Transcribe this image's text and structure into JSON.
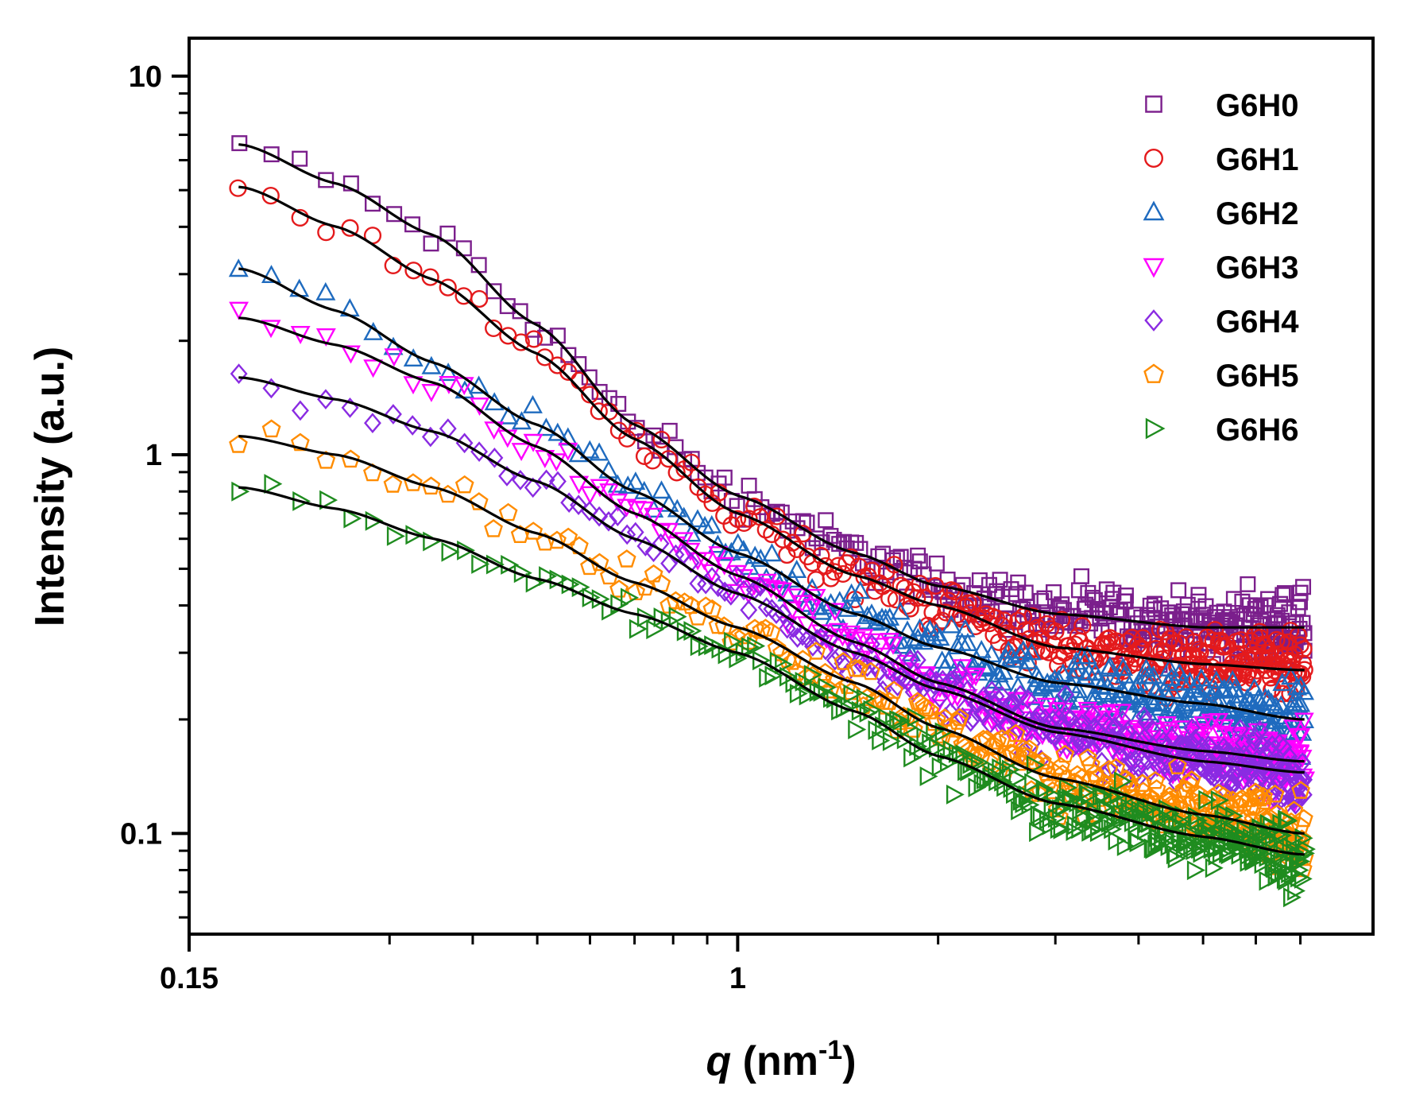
{
  "chart_data": {
    "type": "scatter",
    "xscale": "log",
    "yscale": "log",
    "xlim": [
      0.15,
      9
    ],
    "ylim": [
      0.05,
      13
    ],
    "xlabel_italic": "q",
    "xlabel_rest": " (nm",
    "xlabel_sup": "-1",
    "xlabel_close": ")",
    "ylabel": "Intensity (a.u.)",
    "legend_position": "top-right",
    "x_major_ticks": [
      {
        "value": 0.15,
        "label": "0.15"
      },
      {
        "value": 1,
        "label": "1"
      }
    ],
    "x_minor_ticks": [
      0.3,
      0.4,
      0.5,
      0.6,
      0.7,
      0.8,
      0.9,
      2,
      3,
      4,
      5,
      6,
      7
    ],
    "y_major_ticks": [
      {
        "value": 0.1,
        "label": "0.1"
      },
      {
        "value": 1,
        "label": "1"
      },
      {
        "value": 10,
        "label": "10"
      }
    ],
    "y_minor_ticks": [
      0.06,
      0.07,
      0.08,
      0.09,
      0.2,
      0.3,
      0.4,
      0.5,
      0.6,
      0.7,
      0.8,
      0.9,
      2,
      3,
      4,
      5,
      6,
      7,
      8,
      9
    ],
    "fit_color": "#000000",
    "series": [
      {
        "name": "G6H0",
        "color": "#7b1f8c",
        "marker": "square",
        "x": [
          0.18,
          0.25,
          0.35,
          0.5,
          0.7,
          1.0,
          1.5,
          2.0,
          3.0,
          5.0,
          7.0
        ],
        "y": [
          6.6,
          5.2,
          3.8,
          2.2,
          1.2,
          0.78,
          0.55,
          0.45,
          0.38,
          0.35,
          0.35
        ]
      },
      {
        "name": "G6H1",
        "color": "#e41a1c",
        "marker": "circle",
        "x": [
          0.18,
          0.25,
          0.35,
          0.5,
          0.7,
          1.0,
          1.5,
          2.0,
          3.0,
          5.0,
          7.0
        ],
        "y": [
          5.1,
          4.0,
          2.9,
          1.85,
          1.1,
          0.7,
          0.48,
          0.4,
          0.31,
          0.28,
          0.27
        ]
      },
      {
        "name": "G6H2",
        "color": "#1f6bbf",
        "marker": "triangle-up",
        "x": [
          0.18,
          0.25,
          0.35,
          0.5,
          0.7,
          1.0,
          1.5,
          2.0,
          3.0,
          5.0,
          7.0
        ],
        "y": [
          3.1,
          2.4,
          1.75,
          1.2,
          0.8,
          0.55,
          0.38,
          0.31,
          0.25,
          0.22,
          0.2
        ]
      },
      {
        "name": "G6H3",
        "color": "#ff00ff",
        "marker": "triangle-down",
        "x": [
          0.18,
          0.25,
          0.35,
          0.5,
          0.7,
          1.0,
          1.5,
          2.0,
          3.0,
          5.0,
          7.0
        ],
        "y": [
          2.3,
          1.95,
          1.55,
          1.05,
          0.7,
          0.48,
          0.32,
          0.25,
          0.19,
          0.165,
          0.155
        ]
      },
      {
        "name": "G6H4",
        "color": "#8a2be2",
        "marker": "diamond",
        "x": [
          0.18,
          0.25,
          0.35,
          0.5,
          0.7,
          1.0,
          1.5,
          2.0,
          3.0,
          5.0,
          7.0
        ],
        "y": [
          1.6,
          1.4,
          1.15,
          0.85,
          0.6,
          0.43,
          0.3,
          0.24,
          0.185,
          0.155,
          0.145
        ]
      },
      {
        "name": "G6H5",
        "color": "#ff8c00",
        "marker": "pentagon",
        "x": [
          0.18,
          0.25,
          0.35,
          0.5,
          0.7,
          1.0,
          1.5,
          2.0,
          3.0,
          5.0,
          7.0
        ],
        "y": [
          1.12,
          1.0,
          0.82,
          0.62,
          0.46,
          0.35,
          0.25,
          0.19,
          0.14,
          0.112,
          0.1
        ]
      },
      {
        "name": "G6H6",
        "color": "#1f8c1f",
        "marker": "triangle-right",
        "x": [
          0.18,
          0.25,
          0.35,
          0.5,
          0.7,
          1.0,
          1.5,
          2.0,
          3.0,
          5.0,
          7.0
        ],
        "y": [
          0.82,
          0.72,
          0.6,
          0.47,
          0.38,
          0.3,
          0.21,
          0.16,
          0.12,
          0.098,
          0.088
        ]
      }
    ]
  }
}
